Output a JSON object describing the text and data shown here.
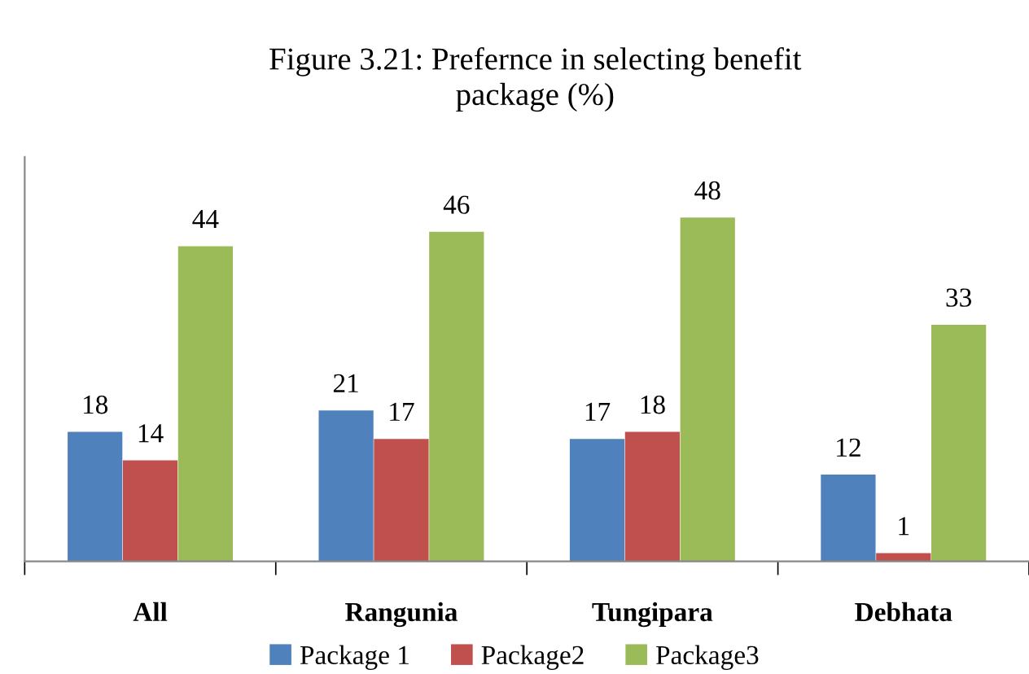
{
  "chart_data": {
    "type": "bar",
    "title": "Figure 3.21: Prefernce in selecting benefit\npackage (%)",
    "categories": [
      "All",
      "Rangunia",
      "Tungipara",
      "Debhata"
    ],
    "series": [
      {
        "name": "Package 1",
        "color": "#4f81bd",
        "values": [
          18,
          21,
          17,
          12
        ]
      },
      {
        "name": "Package2",
        "color": "#c0504d",
        "values": [
          14,
          17,
          18,
          1
        ]
      },
      {
        "name": "Package3",
        "color": "#9bbb59",
        "values": [
          44,
          46,
          48,
          33
        ]
      }
    ],
    "data_labels": true,
    "legend": "bottom",
    "grid": false
  }
}
